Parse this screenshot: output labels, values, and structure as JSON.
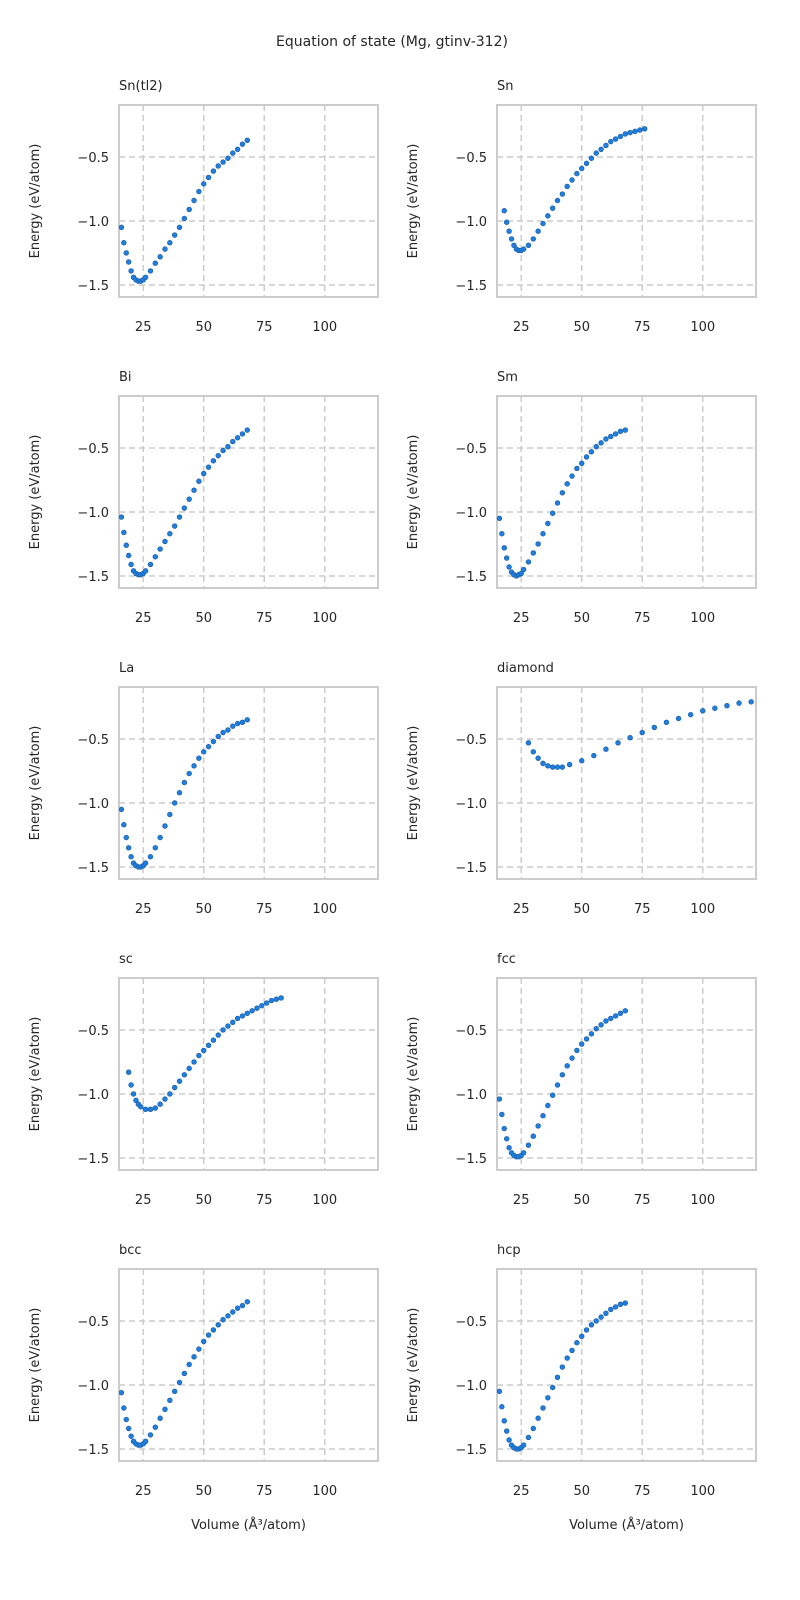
{
  "chart_data": {
    "type": "scatter",
    "title": "Equation of state (Mg, gtinv-312)",
    "xlabel": "Volume (Å³/atom)",
    "ylabel": "Energy (eV/atom)",
    "xlim": [
      15,
      122
    ],
    "ylim": [
      -1.594,
      -0.094
    ],
    "xticks": [
      25,
      50,
      75,
      100
    ],
    "yticks": [
      -0.5,
      -1.0,
      -1.5
    ],
    "ytick_labels": [
      "−0.5",
      "−1.0",
      "−1.5"
    ],
    "grid": true,
    "marker_color": "#1f7fe0",
    "marker_edge": "#1a5a9e",
    "panels": [
      {
        "name": "Sn(tl2)",
        "x": [
          16,
          17,
          18,
          19,
          20,
          21,
          22,
          23,
          24,
          25,
          26,
          28,
          30,
          32,
          34,
          36,
          38,
          40,
          42,
          44,
          46,
          48,
          50,
          52,
          54,
          56,
          58,
          60,
          62,
          64,
          66,
          68
        ],
        "y": [
          -1.05,
          -1.17,
          -1.25,
          -1.32,
          -1.39,
          -1.44,
          -1.46,
          -1.47,
          -1.47,
          -1.46,
          -1.44,
          -1.39,
          -1.33,
          -1.28,
          -1.22,
          -1.17,
          -1.11,
          -1.05,
          -0.98,
          -0.91,
          -0.84,
          -0.77,
          -0.71,
          -0.66,
          -0.61,
          -0.57,
          -0.54,
          -0.51,
          -0.47,
          -0.44,
          -0.4,
          -0.37
        ]
      },
      {
        "name": "Sn",
        "x": [
          18,
          19,
          20,
          21,
          22,
          23,
          24,
          25,
          26,
          28,
          30,
          32,
          34,
          36,
          38,
          40,
          42,
          44,
          46,
          48,
          50,
          52,
          54,
          56,
          58,
          60,
          62,
          64,
          66,
          68,
          70,
          72,
          74,
          76
        ],
        "y": [
          -0.92,
          -1.01,
          -1.08,
          -1.14,
          -1.19,
          -1.22,
          -1.23,
          -1.23,
          -1.22,
          -1.19,
          -1.14,
          -1.08,
          -1.02,
          -0.96,
          -0.9,
          -0.84,
          -0.79,
          -0.73,
          -0.68,
          -0.63,
          -0.59,
          -0.55,
          -0.51,
          -0.47,
          -0.44,
          -0.41,
          -0.38,
          -0.36,
          -0.34,
          -0.32,
          -0.31,
          -0.3,
          -0.29,
          -0.28
        ]
      },
      {
        "name": "Bi",
        "x": [
          16,
          17,
          18,
          19,
          20,
          21,
          22,
          23,
          24,
          25,
          26,
          28,
          30,
          32,
          34,
          36,
          38,
          40,
          42,
          44,
          46,
          48,
          50,
          52,
          54,
          56,
          58,
          60,
          62,
          64,
          66,
          68
        ],
        "y": [
          -1.04,
          -1.16,
          -1.26,
          -1.34,
          -1.41,
          -1.46,
          -1.48,
          -1.49,
          -1.49,
          -1.48,
          -1.46,
          -1.41,
          -1.35,
          -1.29,
          -1.23,
          -1.17,
          -1.11,
          -1.04,
          -0.97,
          -0.9,
          -0.83,
          -0.76,
          -0.7,
          -0.65,
          -0.6,
          -0.56,
          -0.52,
          -0.49,
          -0.45,
          -0.42,
          -0.39,
          -0.36
        ]
      },
      {
        "name": "Sm",
        "x": [
          16,
          17,
          18,
          19,
          20,
          21,
          22,
          23,
          24,
          25,
          26,
          28,
          30,
          32,
          34,
          36,
          38,
          40,
          42,
          44,
          46,
          48,
          50,
          52,
          54,
          56,
          58,
          60,
          62,
          64,
          66,
          68
        ],
        "y": [
          -1.05,
          -1.17,
          -1.28,
          -1.36,
          -1.43,
          -1.47,
          -1.49,
          -1.5,
          -1.49,
          -1.48,
          -1.45,
          -1.39,
          -1.32,
          -1.25,
          -1.17,
          -1.09,
          -1.01,
          -0.93,
          -0.85,
          -0.78,
          -0.72,
          -0.66,
          -0.62,
          -0.57,
          -0.53,
          -0.49,
          -0.46,
          -0.43,
          -0.41,
          -0.39,
          -0.37,
          -0.36
        ]
      },
      {
        "name": "La",
        "x": [
          16,
          17,
          18,
          19,
          20,
          21,
          22,
          23,
          24,
          25,
          26,
          28,
          30,
          32,
          34,
          36,
          38,
          40,
          42,
          44,
          46,
          48,
          50,
          52,
          54,
          56,
          58,
          60,
          62,
          64,
          66,
          68
        ],
        "y": [
          -1.05,
          -1.17,
          -1.27,
          -1.35,
          -1.42,
          -1.47,
          -1.49,
          -1.5,
          -1.5,
          -1.49,
          -1.47,
          -1.42,
          -1.35,
          -1.27,
          -1.18,
          -1.09,
          -1.0,
          -0.92,
          -0.84,
          -0.77,
          -0.71,
          -0.65,
          -0.6,
          -0.56,
          -0.52,
          -0.48,
          -0.45,
          -0.43,
          -0.4,
          -0.38,
          -0.37,
          -0.35
        ]
      },
      {
        "name": "diamond",
        "x": [
          28,
          30,
          32,
          34,
          36,
          38,
          40,
          42,
          45,
          50,
          55,
          60,
          65,
          70,
          75,
          80,
          85,
          90,
          95,
          100,
          105,
          110,
          115,
          120
        ],
        "y": [
          -0.53,
          -0.6,
          -0.65,
          -0.69,
          -0.71,
          -0.72,
          -0.72,
          -0.72,
          -0.7,
          -0.67,
          -0.63,
          -0.58,
          -0.53,
          -0.49,
          -0.45,
          -0.41,
          -0.37,
          -0.34,
          -0.31,
          -0.28,
          -0.26,
          -0.24,
          -0.22,
          -0.21
        ]
      },
      {
        "name": "sc",
        "x": [
          19,
          20,
          21,
          22,
          23,
          24,
          26,
          28,
          30,
          32,
          34,
          36,
          38,
          40,
          42,
          44,
          46,
          48,
          50,
          52,
          54,
          56,
          58,
          60,
          62,
          64,
          66,
          68,
          70,
          72,
          74,
          76,
          78,
          80,
          82
        ],
        "y": [
          -0.83,
          -0.93,
          -1.0,
          -1.05,
          -1.08,
          -1.1,
          -1.12,
          -1.12,
          -1.11,
          -1.08,
          -1.04,
          -1.0,
          -0.95,
          -0.9,
          -0.85,
          -0.8,
          -0.75,
          -0.7,
          -0.66,
          -0.62,
          -0.58,
          -0.54,
          -0.5,
          -0.47,
          -0.44,
          -0.41,
          -0.39,
          -0.37,
          -0.35,
          -0.33,
          -0.31,
          -0.29,
          -0.27,
          -0.26,
          -0.25
        ]
      },
      {
        "name": "fcc",
        "x": [
          16,
          17,
          18,
          19,
          20,
          21,
          22,
          23,
          24,
          25,
          26,
          28,
          30,
          32,
          34,
          36,
          38,
          40,
          42,
          44,
          46,
          48,
          50,
          52,
          54,
          56,
          58,
          60,
          62,
          64,
          66,
          68
        ],
        "y": [
          -1.04,
          -1.16,
          -1.27,
          -1.35,
          -1.42,
          -1.46,
          -1.48,
          -1.49,
          -1.49,
          -1.48,
          -1.46,
          -1.4,
          -1.33,
          -1.25,
          -1.17,
          -1.09,
          -1.01,
          -0.93,
          -0.85,
          -0.78,
          -0.72,
          -0.66,
          -0.61,
          -0.57,
          -0.53,
          -0.49,
          -0.46,
          -0.43,
          -0.41,
          -0.39,
          -0.37,
          -0.35
        ]
      },
      {
        "name": "bcc",
        "x": [
          16,
          17,
          18,
          19,
          20,
          21,
          22,
          23,
          24,
          25,
          26,
          28,
          30,
          32,
          34,
          36,
          38,
          40,
          42,
          44,
          46,
          48,
          50,
          52,
          54,
          56,
          58,
          60,
          62,
          64,
          66,
          68
        ],
        "y": [
          -1.06,
          -1.18,
          -1.27,
          -1.34,
          -1.4,
          -1.44,
          -1.46,
          -1.47,
          -1.47,
          -1.46,
          -1.44,
          -1.39,
          -1.33,
          -1.26,
          -1.19,
          -1.12,
          -1.05,
          -0.98,
          -0.91,
          -0.84,
          -0.78,
          -0.72,
          -0.66,
          -0.61,
          -0.57,
          -0.53,
          -0.49,
          -0.46,
          -0.43,
          -0.4,
          -0.38,
          -0.35
        ]
      },
      {
        "name": "hcp",
        "x": [
          16,
          17,
          18,
          19,
          20,
          21,
          22,
          23,
          24,
          25,
          26,
          28,
          30,
          32,
          34,
          36,
          38,
          40,
          42,
          44,
          46,
          48,
          50,
          52,
          54,
          56,
          58,
          60,
          62,
          64,
          66,
          68
        ],
        "y": [
          -1.05,
          -1.17,
          -1.28,
          -1.36,
          -1.43,
          -1.47,
          -1.49,
          -1.5,
          -1.5,
          -1.49,
          -1.47,
          -1.41,
          -1.34,
          -1.26,
          -1.18,
          -1.1,
          -1.02,
          -0.94,
          -0.86,
          -0.79,
          -0.73,
          -0.67,
          -0.62,
          -0.57,
          -0.53,
          -0.5,
          -0.47,
          -0.44,
          -0.41,
          -0.39,
          -0.37,
          -0.36
        ]
      }
    ]
  }
}
